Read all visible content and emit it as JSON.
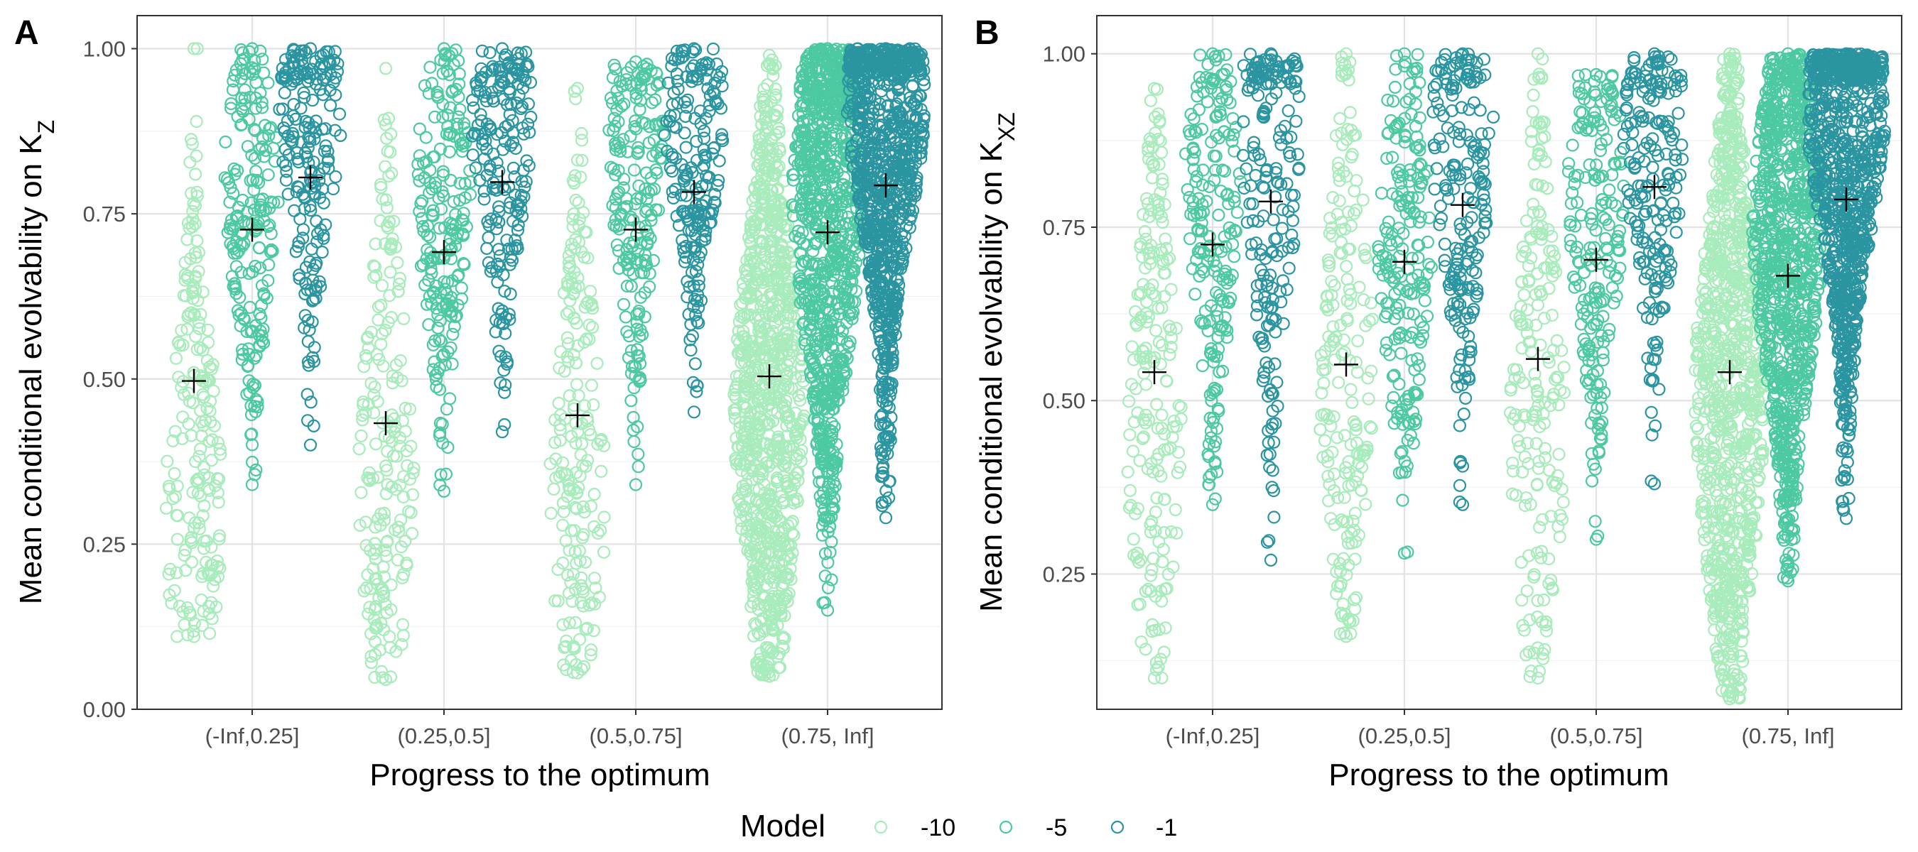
{
  "chart_data": [
    {
      "type": "scatter",
      "subtype": "beeswarm",
      "panel_label": "A",
      "title": "",
      "xlabel": "Progress to the optimum",
      "ylabel_text": "Mean conditional evolvability on K",
      "ylabel_subscript": "Z",
      "categories": [
        "(-Inf,0.25]",
        "(0.25,0.5]",
        "(0.5,0.75]",
        "(0.75, Inf]"
      ],
      "ylim": [
        0.0,
        1.05
      ],
      "yticks": [
        0.0,
        0.25,
        0.5,
        0.75,
        1.0
      ],
      "ytick_labels": [
        "0.00",
        "0.25",
        "0.50",
        "0.75",
        "1.00"
      ],
      "grid": true,
      "series": [
        {
          "name": "-10",
          "means": [
            0.497,
            0.433,
            0.445,
            0.504
          ],
          "mins": [
            0.11,
            0.045,
            0.055,
            0.05
          ],
          "maxs": [
            1.0,
            0.97,
            0.94,
            0.99
          ],
          "counts": [
            200,
            200,
            200,
            900
          ],
          "peaks": [
            0.3,
            0.35,
            0.33,
            0.45
          ]
        },
        {
          "name": "-5",
          "means": [
            0.726,
            0.692,
            0.726,
            0.722
          ],
          "mins": [
            0.34,
            0.33,
            0.34,
            0.15
          ],
          "maxs": [
            1.0,
            1.0,
            0.98,
            1.0
          ],
          "counts": [
            200,
            200,
            200,
            900
          ],
          "peaks": [
            0.8,
            0.78,
            0.85,
            0.78
          ]
        },
        {
          "name": "-1",
          "means": [
            0.805,
            0.798,
            0.783,
            0.793
          ],
          "mins": [
            0.4,
            0.42,
            0.45,
            0.29
          ],
          "maxs": [
            1.0,
            1.0,
            1.0,
            1.0
          ],
          "counts": [
            200,
            200,
            200,
            900
          ],
          "peaks": [
            0.9,
            0.88,
            0.9,
            0.92
          ]
        }
      ]
    },
    {
      "type": "scatter",
      "subtype": "beeswarm",
      "panel_label": "B",
      "title": "",
      "xlabel": "Progress to the optimum",
      "ylabel_text": "Mean conditional evolvability on K",
      "ylabel_subscript": "XZ",
      "categories": [
        "(-Inf,0.25]",
        "(0.25,0.5]",
        "(0.5,0.75]",
        "(0.75, Inf]"
      ],
      "ylim": [
        0.055,
        1.055
      ],
      "yticks": [
        0.25,
        0.5,
        0.75,
        1.0
      ],
      "ytick_labels": [
        "0.25",
        "0.50",
        "0.75",
        "1.00"
      ],
      "grid": true,
      "series": [
        {
          "name": "-10",
          "means": [
            0.541,
            0.552,
            0.56,
            0.541
          ],
          "mins": [
            0.1,
            0.16,
            0.1,
            0.07
          ],
          "maxs": [
            0.95,
            1.0,
            1.0,
            1.0
          ],
          "counts": [
            200,
            200,
            200,
            900
          ],
          "peaks": [
            0.45,
            0.55,
            0.45,
            0.5
          ]
        },
        {
          "name": "-5",
          "means": [
            0.725,
            0.7,
            0.703,
            0.68
          ],
          "mins": [
            0.35,
            0.28,
            0.3,
            0.24
          ],
          "maxs": [
            1.0,
            1.0,
            0.97,
            1.0
          ],
          "counts": [
            200,
            200,
            200,
            900
          ],
          "peaks": [
            0.8,
            0.75,
            0.8,
            0.75
          ]
        },
        {
          "name": "-1",
          "means": [
            0.787,
            0.782,
            0.808,
            0.79
          ],
          "mins": [
            0.27,
            0.35,
            0.38,
            0.33
          ],
          "maxs": [
            1.0,
            1.0,
            1.0,
            1.0
          ],
          "counts": [
            200,
            200,
            200,
            900
          ],
          "peaks": [
            0.88,
            0.88,
            0.88,
            0.92
          ]
        }
      ]
    }
  ],
  "legend": {
    "title": "Model",
    "entries": [
      {
        "label": "-10",
        "color": "#a8ecbc"
      },
      {
        "label": "-5",
        "color": "#4cc9a0"
      },
      {
        "label": "-1",
        "color": "#2a95a0"
      }
    ],
    "placement": "bottom"
  },
  "colors": {
    "mean_marker": "#000000",
    "grid": "#e3e3e3",
    "panel_border": "#333333"
  }
}
